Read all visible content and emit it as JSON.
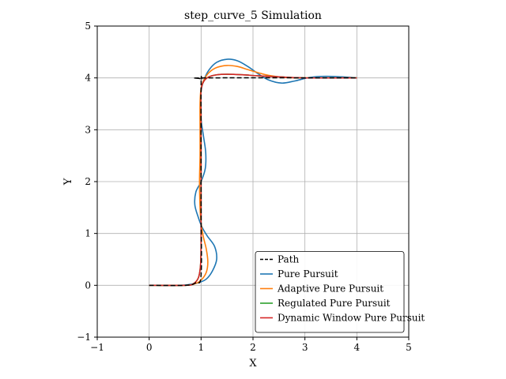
{
  "chart_data": {
    "type": "line",
    "title": "step_curve_5 Simulation",
    "xlabel": "X",
    "ylabel": "Y",
    "xlim": [
      -1,
      5
    ],
    "ylim": [
      -1,
      5
    ],
    "xticks": [
      "−1",
      "0",
      "1",
      "2",
      "3",
      "4",
      "5"
    ],
    "yticks": [
      "−1",
      "0",
      "1",
      "2",
      "3",
      "4",
      "5"
    ],
    "grid": true,
    "legend_position": "lower-right",
    "series": [
      {
        "name": "Path",
        "color": "#000000",
        "dash": true,
        "points": [
          [
            0,
            0
          ],
          [
            0.7,
            0
          ],
          [
            0.9,
            0.05
          ],
          [
            1.0,
            0.2
          ],
          [
            1.0,
            1.5
          ],
          [
            1.0,
            3.8
          ],
          [
            1.02,
            3.97
          ],
          [
            1.1,
            4.0
          ],
          [
            4.0,
            4.0
          ]
        ]
      },
      {
        "name": "Pure Pursuit",
        "color": "#1f77b4",
        "dash": false,
        "points": [
          [
            0,
            0
          ],
          [
            0.6,
            0
          ],
          [
            0.8,
            0.02
          ],
          [
            0.95,
            0.05
          ],
          [
            1.1,
            0.12
          ],
          [
            1.22,
            0.28
          ],
          [
            1.3,
            0.5
          ],
          [
            1.26,
            0.75
          ],
          [
            1.12,
            0.95
          ],
          [
            1.02,
            1.12
          ],
          [
            0.95,
            1.3
          ],
          [
            0.88,
            1.55
          ],
          [
            0.9,
            1.8
          ],
          [
            1.0,
            2.0
          ],
          [
            1.08,
            2.25
          ],
          [
            1.09,
            2.55
          ],
          [
            1.05,
            2.85
          ],
          [
            1.0,
            3.2
          ],
          [
            0.99,
            3.5
          ],
          [
            1.0,
            3.75
          ],
          [
            1.05,
            3.95
          ],
          [
            1.15,
            4.15
          ],
          [
            1.3,
            4.3
          ],
          [
            1.5,
            4.36
          ],
          [
            1.7,
            4.33
          ],
          [
            1.9,
            4.22
          ],
          [
            2.1,
            4.08
          ],
          [
            2.3,
            3.96
          ],
          [
            2.55,
            3.9
          ],
          [
            2.8,
            3.94
          ],
          [
            3.1,
            4.01
          ],
          [
            3.4,
            4.03
          ],
          [
            3.7,
            4.02
          ],
          [
            4.0,
            4.0
          ]
        ]
      },
      {
        "name": "Adaptive Pure Pursuit",
        "color": "#ff7f0e",
        "dash": false,
        "points": [
          [
            0,
            0
          ],
          [
            0.7,
            0
          ],
          [
            0.88,
            0.03
          ],
          [
            1.0,
            0.1
          ],
          [
            1.1,
            0.25
          ],
          [
            1.13,
            0.45
          ],
          [
            1.1,
            0.7
          ],
          [
            1.04,
            0.95
          ],
          [
            1.0,
            1.2
          ],
          [
            0.98,
            1.5
          ],
          [
            0.97,
            2.0
          ],
          [
            0.98,
            2.5
          ],
          [
            0.98,
            3.0
          ],
          [
            0.98,
            3.5
          ],
          [
            1.0,
            3.8
          ],
          [
            1.05,
            3.95
          ],
          [
            1.15,
            4.1
          ],
          [
            1.3,
            4.2
          ],
          [
            1.5,
            4.24
          ],
          [
            1.7,
            4.22
          ],
          [
            1.9,
            4.16
          ],
          [
            2.1,
            4.1
          ],
          [
            2.3,
            4.05
          ],
          [
            2.6,
            4.01
          ],
          [
            3.0,
            4.0
          ],
          [
            4.0,
            4.0
          ]
        ]
      },
      {
        "name": "Regulated Pure Pursuit",
        "color": "#2ca02c",
        "dash": false,
        "points": [
          [
            0,
            0
          ],
          [
            0.7,
            0
          ],
          [
            0.85,
            0.03
          ],
          [
            0.95,
            0.15
          ],
          [
            0.99,
            0.4
          ],
          [
            1.0,
            0.8
          ],
          [
            1.0,
            1.5
          ],
          [
            1.0,
            2.5
          ],
          [
            1.0,
            3.3
          ],
          [
            1.0,
            3.75
          ],
          [
            1.05,
            3.93
          ],
          [
            1.15,
            4.02
          ],
          [
            1.3,
            4.06
          ],
          [
            1.5,
            4.07
          ],
          [
            1.8,
            4.06
          ],
          [
            2.1,
            4.04
          ],
          [
            2.5,
            4.02
          ],
          [
            3.0,
            4.0
          ],
          [
            4.0,
            4.0
          ]
        ]
      },
      {
        "name": "Dynamic Window Pure Pursuit",
        "color": "#d62728",
        "dash": false,
        "points": [
          [
            0,
            0
          ],
          [
            0.7,
            0
          ],
          [
            0.85,
            0.03
          ],
          [
            0.95,
            0.15
          ],
          [
            0.99,
            0.4
          ],
          [
            1.0,
            0.8
          ],
          [
            1.0,
            1.5
          ],
          [
            1.0,
            2.5
          ],
          [
            1.0,
            3.3
          ],
          [
            1.0,
            3.75
          ],
          [
            1.05,
            3.93
          ],
          [
            1.15,
            4.02
          ],
          [
            1.3,
            4.06
          ],
          [
            1.5,
            4.07
          ],
          [
            1.8,
            4.06
          ],
          [
            2.1,
            4.04
          ],
          [
            2.5,
            4.02
          ],
          [
            3.0,
            4.0
          ],
          [
            4.0,
            4.0
          ]
        ]
      }
    ]
  }
}
